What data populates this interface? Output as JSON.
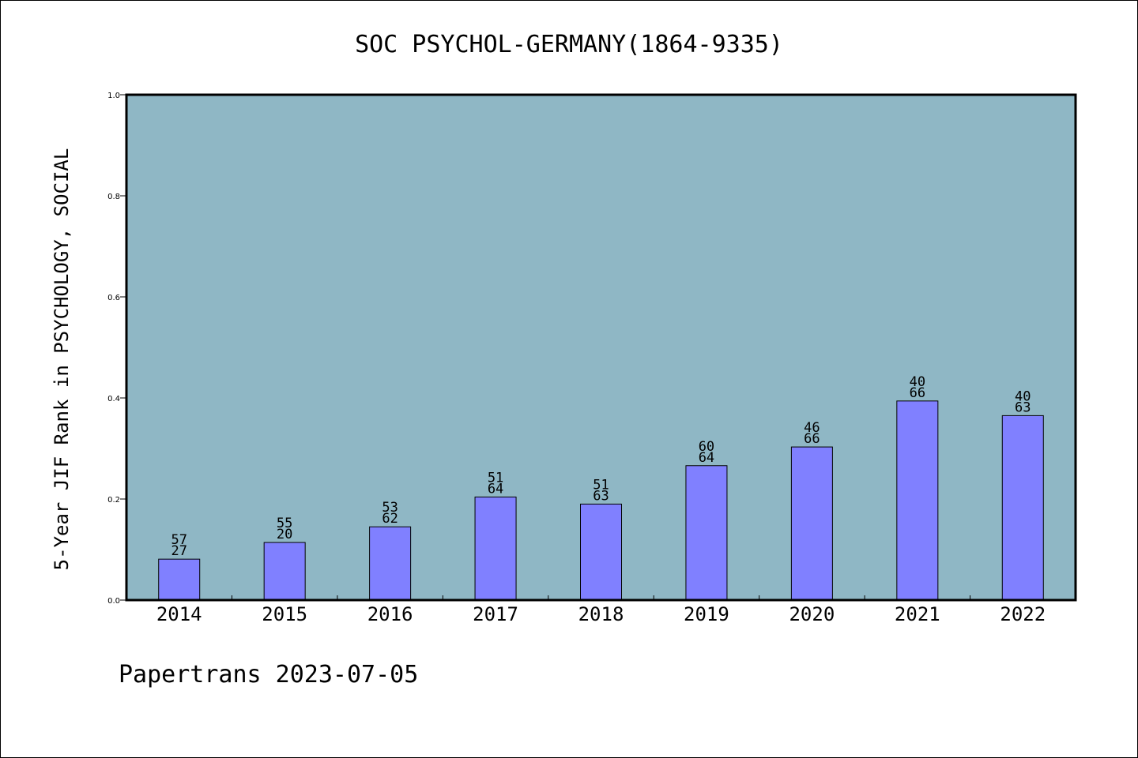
{
  "chart_data": {
    "type": "bar",
    "title": "SOC PSYCHOL-GERMANY(1864-9335)",
    "ylabel": "5-Year JIF Rank in PSYCHOLOGY, SOCIAL",
    "xlabel": "",
    "ylim": [
      0,
      1
    ],
    "yticks": [
      "0.0",
      "0.2",
      "0.4",
      "0.6",
      "0.8",
      "1.0"
    ],
    "categories": [
      "2014",
      "2015",
      "2016",
      "2017",
      "2018",
      "2019",
      "2020",
      "2021",
      "2022"
    ],
    "values": [
      0.081,
      0.114,
      0.145,
      0.204,
      0.19,
      0.266,
      0.303,
      0.394,
      0.365
    ],
    "labels_top": [
      "57",
      "55",
      "53",
      "51",
      "51",
      "60",
      "46",
      "40",
      "40"
    ],
    "labels_bottom": [
      "27",
      "20",
      "62",
      "64",
      "63",
      "64",
      "66",
      "66",
      "63"
    ],
    "grid": false,
    "colors": {
      "plot_background": "#8fb7c5",
      "bar_fill": "#8080ff",
      "bar_stroke": "#000000"
    }
  },
  "footer": "Papertrans 2023-07-05"
}
